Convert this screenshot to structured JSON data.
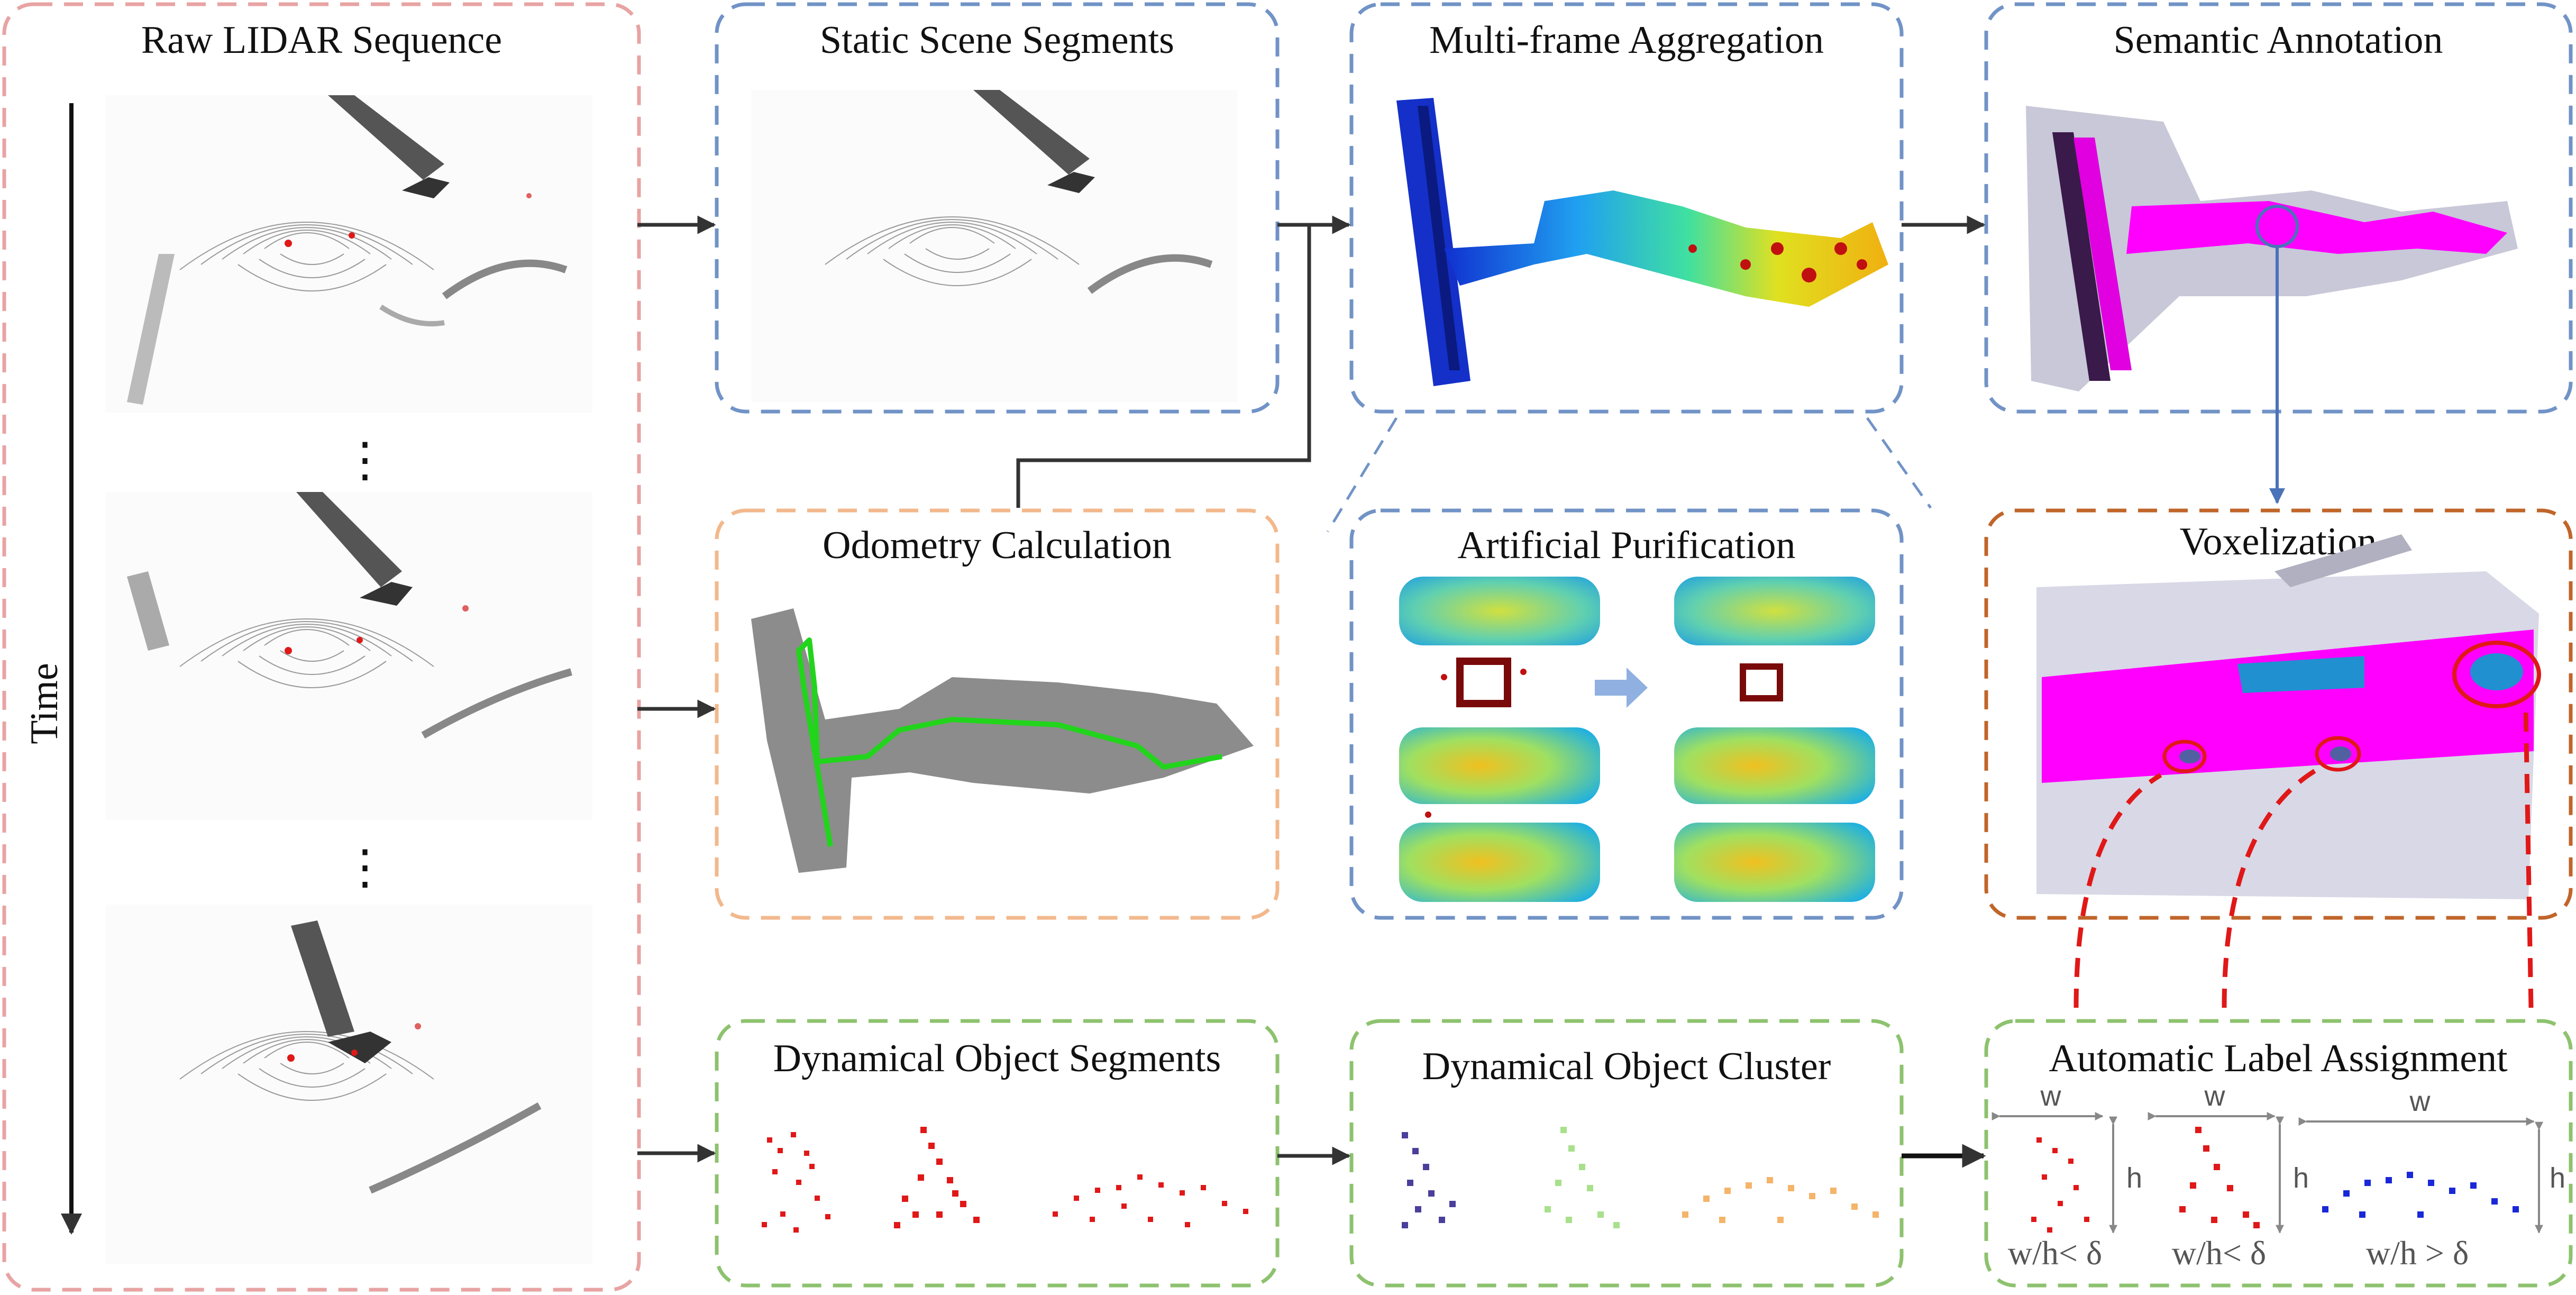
{
  "colors": {
    "pink_border": "#e8a3a3",
    "blue_border": "#7193c6",
    "orange_border": "#f2b88c",
    "green_border": "#8dc26e",
    "brown_border": "#c0652a",
    "magenta": "#ff00ff",
    "red_points": "#e01818",
    "odometry_line": "#22d41c"
  },
  "titles": {
    "raw_lidar": "Raw LIDAR Sequence",
    "static_scene": "Static Scene Segments",
    "multi_frame": "Multi-frame Aggregation",
    "semantic": "Semantic Annotation",
    "odometry": "Odometry Calculation",
    "purification": "Artificial Purification",
    "voxelization": "Voxelization",
    "dyn_segments": "Dynamical Object Segments",
    "dyn_cluster": "Dynamical Object Cluster",
    "auto_label": "Automatic Label Assignment"
  },
  "time_label": "Time",
  "ellipsis": "⋮",
  "dims": {
    "w": "w",
    "h": "h"
  },
  "ratios": {
    "r1": "w/h< δ",
    "r2": "w/h< δ",
    "r3": "w/h > δ"
  },
  "icons": [
    "time-arrow",
    "flow-arrow",
    "magnifier-circle",
    "highlight-circle"
  ]
}
